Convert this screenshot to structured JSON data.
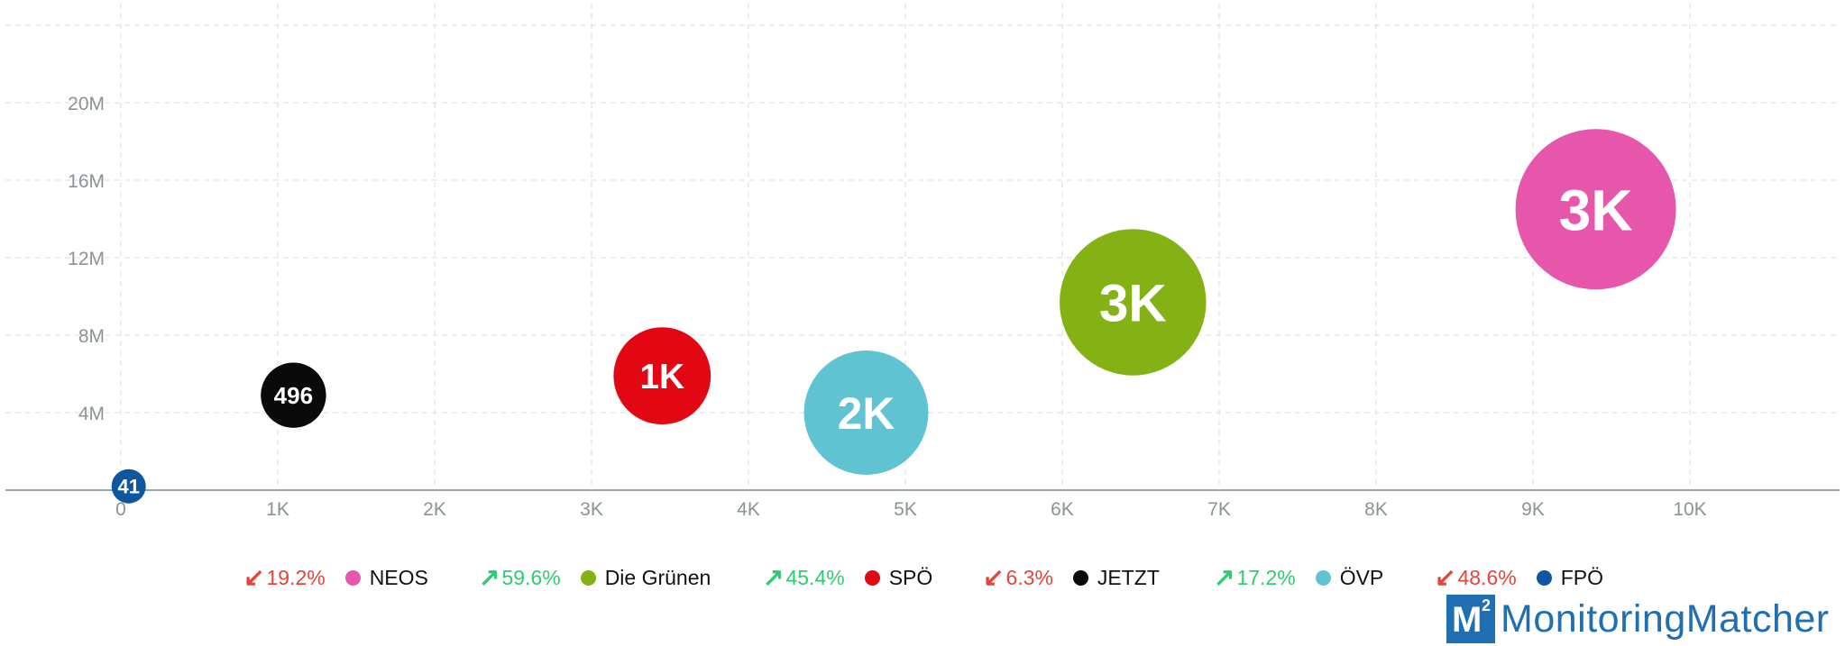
{
  "chart_data": {
    "type": "scatter",
    "bubble": true,
    "x_ticks": [
      "0",
      "1K",
      "2K",
      "3K",
      "4K",
      "5K",
      "6K",
      "7K",
      "8K",
      "9K",
      "10K"
    ],
    "y_ticks": [
      "4M",
      "8M",
      "12M",
      "16M",
      "20M"
    ],
    "xlim": [
      0,
      11000
    ],
    "ylim": [
      0,
      25000000
    ],
    "grid": true,
    "legend_position": "bottom",
    "points": [
      {
        "name": "NEOS",
        "x": 9400,
        "y": 14500000,
        "size": 3000,
        "label": "3K",
        "color": "#e657ab"
      },
      {
        "name": "Die Grünen",
        "x": 6450,
        "y": 9700000,
        "size": 2500,
        "label": "3K",
        "color": "#84b215"
      },
      {
        "name": "ÖVP",
        "x": 4750,
        "y": 4000000,
        "size": 1800,
        "label": "2K",
        "color": "#5fc3d1"
      },
      {
        "name": "SPÖ",
        "x": 3450,
        "y": 5900000,
        "size": 1100,
        "label": "1K",
        "color": "#e30714"
      },
      {
        "name": "JETZT",
        "x": 1100,
        "y": 4900000,
        "size": 496,
        "label": "496",
        "color": "#0a0a0a"
      },
      {
        "name": "FPÖ",
        "x": 50,
        "y": 200000,
        "size": 41,
        "label": "41",
        "color": "#0e56a0"
      }
    ]
  },
  "legend": [
    {
      "direction": "down",
      "change": "19.2%",
      "name": "NEOS",
      "color": "#e657ab",
      "change_color": "#e4453a"
    },
    {
      "direction": "up",
      "change": "59.6%",
      "name": "Die Grünen",
      "color": "#84b215",
      "change_color": "#2ecc71"
    },
    {
      "direction": "up",
      "change": "45.4%",
      "name": "SPÖ",
      "color": "#e30714",
      "change_color": "#2ecc71"
    },
    {
      "direction": "down",
      "change": "6.3%",
      "name": "JETZT",
      "color": "#0a0a0a",
      "change_color": "#e4453a"
    },
    {
      "direction": "up",
      "change": "17.2%",
      "name": "ÖVP",
      "color": "#5fc3d1",
      "change_color": "#2ecc71"
    },
    {
      "direction": "down",
      "change": "48.6%",
      "name": "FPÖ",
      "color": "#0e56a0",
      "change_color": "#e4453a"
    }
  ],
  "arrows": {
    "up": "↗",
    "down": "↙"
  },
  "logo": {
    "mark": "M",
    "superscript": "2",
    "text": "MonitoringMatcher",
    "color": "#1f6fb2"
  }
}
